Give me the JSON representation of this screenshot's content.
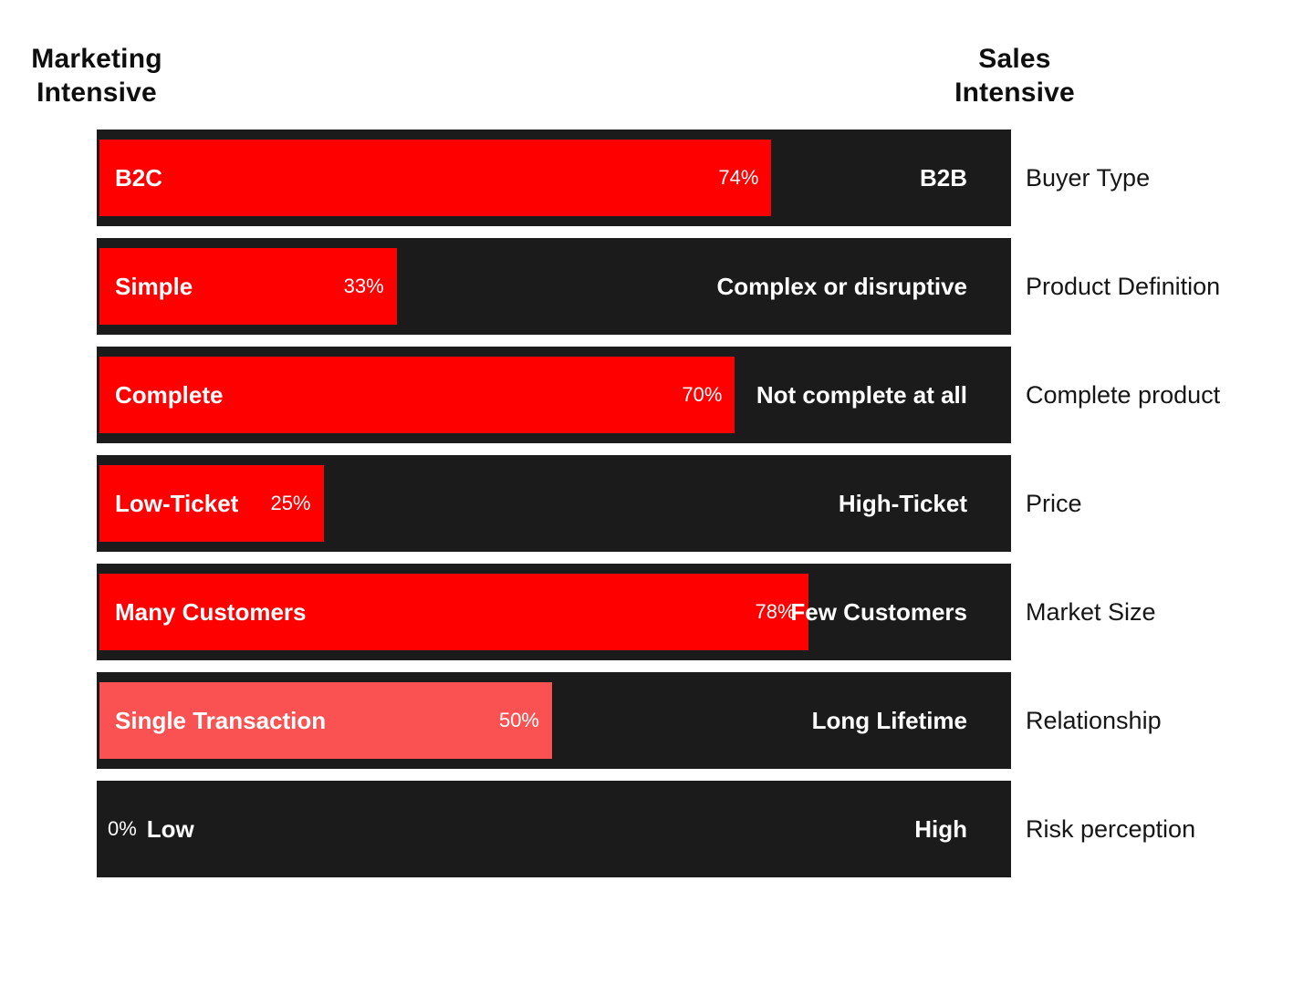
{
  "chart_data": {
    "type": "bar",
    "orientation": "horizontal-diverging-labels",
    "left_header": "Marketing Intensive",
    "right_header": "Sales Intensive",
    "xlim": [
      0,
      100
    ],
    "unit": "%",
    "grid": false,
    "colors": {
      "bar_red": "#fe0000",
      "bar_salmon": "#fa5252",
      "track_dark": "#1a1b1a",
      "background": "#ffffff",
      "text_dark": "#161616",
      "text_light": "#ffffff"
    },
    "rows": [
      {
        "category": "Buyer Type",
        "left_label": "B2C",
        "right_label": "B2B",
        "value": 74,
        "value_label": "74%",
        "bar_color": "#fe0000"
      },
      {
        "category": "Product Definition",
        "left_label": "Simple",
        "right_label": "Complex or disruptive",
        "value": 33,
        "value_label": "33%",
        "bar_color": "#fe0000"
      },
      {
        "category": "Complete product",
        "left_label": "Complete",
        "right_label": "Not complete at all",
        "value": 70,
        "value_label": "70%",
        "bar_color": "#fe0000"
      },
      {
        "category": "Price",
        "left_label": "Low-Ticket",
        "right_label": "High-Ticket",
        "value": 25,
        "value_label": "25%",
        "bar_color": "#fe0000"
      },
      {
        "category": "Market Size",
        "left_label": "Many Customers",
        "right_label": "Few Customers",
        "value": 78,
        "value_label": "78%",
        "bar_color": "#fe0000"
      },
      {
        "category": "Relationship",
        "left_label": "Single Transaction",
        "right_label": "Long Lifetime",
        "value": 50,
        "value_label": "50%",
        "bar_color": "#fa5252"
      },
      {
        "category": "Risk perception",
        "left_label": "Low",
        "right_label": "High",
        "value": 0,
        "value_label": "0%",
        "bar_color": null
      }
    ]
  }
}
